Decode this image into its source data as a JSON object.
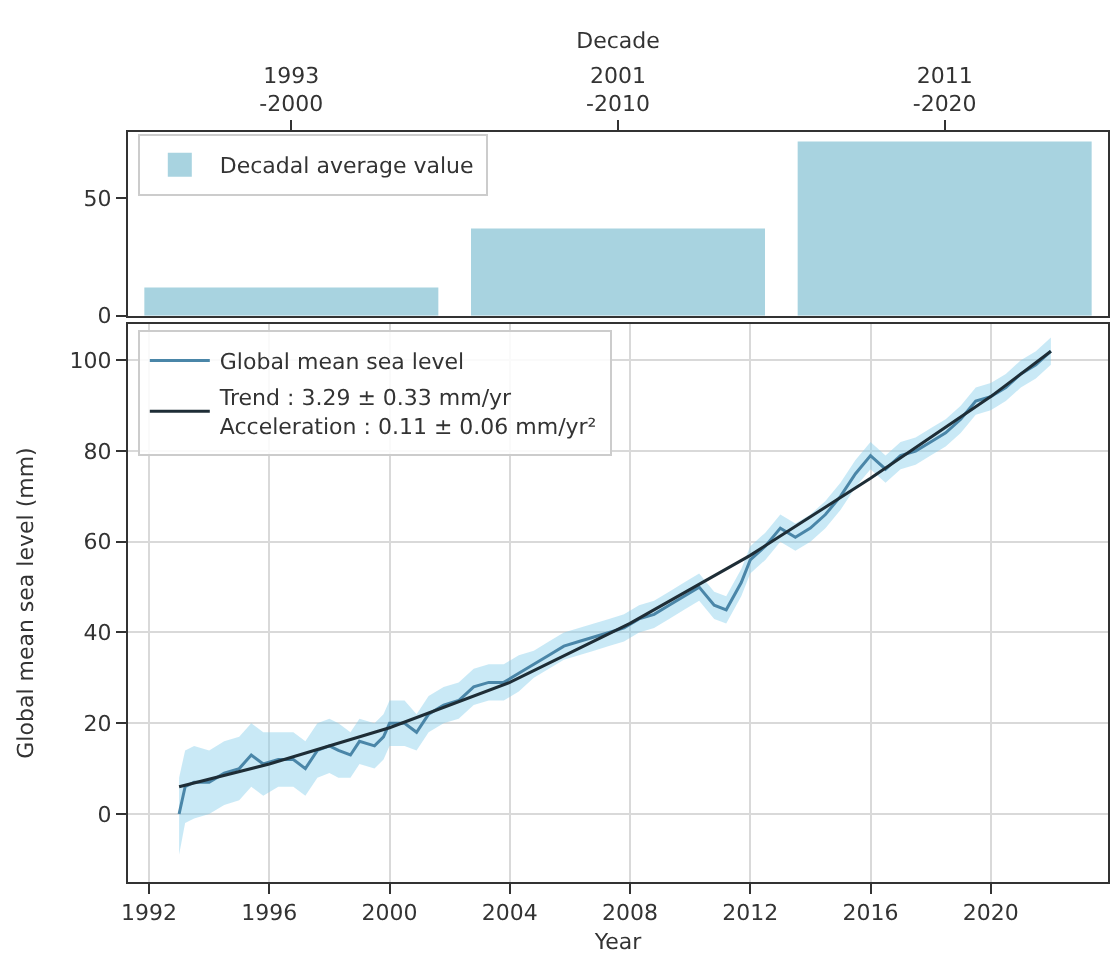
{
  "chart_data": [
    {
      "type": "bar",
      "xlabel": "Decade",
      "categories": [
        "1993\n-2000",
        "2001\n-2010",
        "2011\n-2020"
      ],
      "series": [
        {
          "name": "Decadal average value",
          "color": "#a8d3e0",
          "values": [
            12,
            37,
            74
          ]
        }
      ],
      "ylim": [
        0,
        78
      ],
      "yticks": [
        0,
        50
      ],
      "grid": false,
      "legend": "top left"
    },
    {
      "type": "line",
      "xlabel": "Year",
      "ylabel": "Global mean sea level (mm)",
      "xlim": [
        1991.3,
        2023.9
      ],
      "xticks": [
        1992,
        1996,
        2000,
        2004,
        2008,
        2012,
        2016,
        2020
      ],
      "ylim": [
        -15,
        108
      ],
      "yticks": [
        0,
        20,
        40,
        60,
        80,
        100
      ],
      "grid": true,
      "legend": "top left",
      "series": [
        {
          "name": "Global mean sea level",
          "color": "#4a86a8",
          "x": [
            1993.0,
            1993.2,
            1993.5,
            1994.0,
            1994.5,
            1995.0,
            1995.4,
            1995.8,
            1996.3,
            1996.8,
            1997.2,
            1997.6,
            1998.0,
            1998.3,
            1998.7,
            1999.0,
            1999.5,
            1999.8,
            2000.0,
            2000.5,
            2000.9,
            2001.3,
            2001.8,
            2002.3,
            2002.8,
            2003.3,
            2003.8,
            2004.3,
            2004.8,
            2005.3,
            2005.8,
            2006.3,
            2006.8,
            2007.3,
            2007.8,
            2008.3,
            2008.8,
            2009.3,
            2009.8,
            2010.3,
            2010.8,
            2011.2,
            2011.7,
            2012.0,
            2012.5,
            2013.0,
            2013.5,
            2014.0,
            2014.5,
            2015.0,
            2015.5,
            2016.0,
            2016.5,
            2017.0,
            2017.5,
            2018.0,
            2018.5,
            2019.0,
            2019.5,
            2020.0,
            2020.5,
            2021.0,
            2021.5,
            2022.0
          ],
          "values": [
            0,
            6,
            7,
            7,
            9,
            10,
            13,
            11,
            12,
            12,
            10,
            14,
            15,
            14,
            13,
            16,
            15,
            17,
            20,
            20,
            18,
            22,
            24,
            25,
            28,
            29,
            29,
            31,
            33,
            35,
            37,
            38,
            39,
            40,
            41,
            43,
            44,
            46,
            48,
            50,
            46,
            45,
            51,
            56,
            59,
            63,
            61,
            63,
            66,
            70,
            75,
            79,
            76,
            79,
            80,
            82,
            84,
            87,
            91,
            92,
            94,
            97,
            99,
            102
          ],
          "lower": [
            -9,
            -2,
            -1,
            0,
            2,
            3,
            6,
            4,
            6,
            6,
            4,
            8,
            9,
            8,
            8,
            11,
            10,
            12,
            15,
            15,
            14,
            18,
            20,
            21,
            24,
            25,
            25,
            27,
            30,
            32,
            34,
            35,
            36,
            37,
            38,
            40,
            41,
            43,
            45,
            47,
            43,
            42,
            48,
            53,
            56,
            60,
            58,
            60,
            63,
            67,
            72,
            76,
            73,
            76,
            77,
            79,
            81,
            84,
            88,
            89,
            91,
            94,
            96,
            99
          ],
          "upper": [
            8,
            14,
            15,
            14,
            16,
            17,
            20,
            18,
            18,
            18,
            16,
            20,
            21,
            20,
            18,
            21,
            20,
            22,
            25,
            25,
            22,
            26,
            28,
            29,
            32,
            33,
            33,
            35,
            36,
            38,
            40,
            41,
            42,
            43,
            44,
            46,
            47,
            49,
            51,
            53,
            49,
            48,
            54,
            59,
            62,
            66,
            64,
            66,
            69,
            73,
            78,
            82,
            79,
            82,
            83,
            85,
            87,
            90,
            94,
            95,
            97,
            100,
            102,
            105
          ]
        },
        {
          "name": "Trend : 3.29 ± 0.33 mm/yr\nAcceleration : 0.11 ± 0.06 mm/yr²",
          "color": "#1e2d36",
          "x": [
            1993,
            1996,
            2000,
            2004,
            2008,
            2012,
            2016,
            2020,
            2022
          ],
          "values": [
            6,
            11,
            19,
            29,
            42,
            57,
            74,
            92,
            102
          ]
        }
      ]
    }
  ]
}
